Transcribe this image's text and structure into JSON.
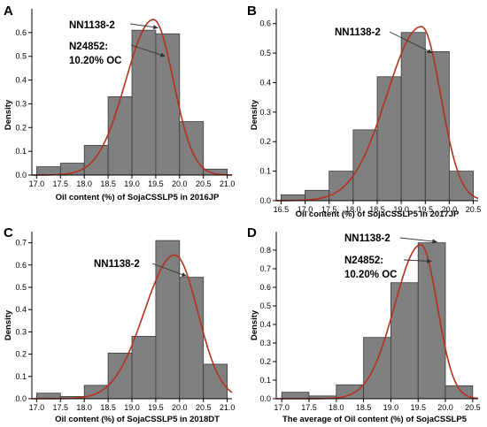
{
  "chart_data": [
    {
      "type": "bar",
      "panel": "A",
      "xlabel": "Oil content (%) of SojaCSSLP5 in 2016JP",
      "ylabel": "Density",
      "xlim": [
        16.9,
        21.1
      ],
      "ylim": [
        0,
        0.7
      ],
      "xticks": [
        17.0,
        17.5,
        18.0,
        18.5,
        19.0,
        19.5,
        20.0,
        20.5,
        21.0
      ],
      "yticks": [
        0.0,
        0.1,
        0.2,
        0.3,
        0.4,
        0.5,
        0.6
      ],
      "bins": [
        [
          17.0,
          17.5
        ],
        [
          17.5,
          18.0
        ],
        [
          18.0,
          18.5
        ],
        [
          18.5,
          19.0
        ],
        [
          19.0,
          19.5
        ],
        [
          19.5,
          20.0
        ],
        [
          20.0,
          20.5
        ],
        [
          20.5,
          21.0
        ]
      ],
      "values": [
        0.035,
        0.05,
        0.125,
        0.33,
        0.61,
        0.595,
        0.225,
        0.025
      ],
      "curve": {
        "mean": 19.45,
        "sd_left": 0.58,
        "sd_right": 0.42,
        "peak": 0.655
      },
      "annotations": [
        {
          "text": "NN1138-2",
          "target_x": 19.55,
          "target_y": 0.62
        },
        {
          "text": "N24852:",
          "line2": "10.20% OC",
          "target_x": 19.7,
          "target_y": 0.5
        }
      ]
    },
    {
      "type": "bar",
      "panel": "B",
      "xlabel": "Oil content (%) of SojaCSSLP5 in 2017JP",
      "ylabel": "Density",
      "xlim": [
        16.4,
        20.6
      ],
      "ylim": [
        0,
        0.65
      ],
      "xticks": [
        16.5,
        17.0,
        17.5,
        18.0,
        18.5,
        19.0,
        19.5,
        20.0,
        20.5
      ],
      "yticks": [
        0.0,
        0.1,
        0.2,
        0.3,
        0.4,
        0.5,
        0.6
      ],
      "bins": [
        [
          16.5,
          17.0
        ],
        [
          17.0,
          17.5
        ],
        [
          17.5,
          18.0
        ],
        [
          18.0,
          18.5
        ],
        [
          18.5,
          19.0
        ],
        [
          19.0,
          19.5
        ],
        [
          19.5,
          20.0
        ],
        [
          20.0,
          20.5
        ]
      ],
      "values": [
        0.02,
        0.035,
        0.1,
        0.24,
        0.42,
        0.57,
        0.505,
        0.1
      ],
      "curve": {
        "mean": 19.42,
        "sd_left": 0.72,
        "sd_right": 0.4,
        "peak": 0.59
      },
      "annotations": [
        {
          "text": "NN1138-2",
          "target_x": 19.65,
          "target_y": 0.5
        }
      ]
    },
    {
      "type": "bar",
      "panel": "C",
      "xlabel": "Oil content (%) of SojaCSSLP5 in 2018DT",
      "ylabel": "Density",
      "xlim": [
        16.9,
        21.1
      ],
      "ylim": [
        0,
        0.75
      ],
      "xticks": [
        17.0,
        17.5,
        18.0,
        18.5,
        19.0,
        19.5,
        20.0,
        20.5,
        21.0
      ],
      "yticks": [
        0.0,
        0.1,
        0.2,
        0.3,
        0.4,
        0.5,
        0.6,
        0.7
      ],
      "bins": [
        [
          17.0,
          17.5
        ],
        [
          17.5,
          18.0
        ],
        [
          18.0,
          18.5
        ],
        [
          18.5,
          19.0
        ],
        [
          19.0,
          19.5
        ],
        [
          19.5,
          20.0
        ],
        [
          20.0,
          20.5
        ],
        [
          20.5,
          21.0
        ]
      ],
      "values": [
        0.025,
        0.01,
        0.06,
        0.205,
        0.28,
        0.71,
        0.545,
        0.155
      ],
      "curve": {
        "mean": 19.9,
        "sd_left": 0.64,
        "sd_right": 0.48,
        "peak": 0.645
      },
      "annotations": [
        {
          "text": "NN1138-2",
          "target_x": 20.15,
          "target_y": 0.55
        }
      ]
    },
    {
      "type": "bar",
      "panel": "D",
      "xlabel": "The average of Oil content (%) of SojaCSSLP5",
      "ylabel": "Density",
      "xlim": [
        16.9,
        20.6
      ],
      "ylim": [
        0,
        0.9
      ],
      "xticks": [
        17.0,
        17.5,
        18.0,
        18.5,
        19.0,
        19.5,
        20.0,
        20.5
      ],
      "yticks": [
        0.0,
        0.1,
        0.2,
        0.3,
        0.4,
        0.5,
        0.6,
        0.7,
        0.8
      ],
      "bins": [
        [
          17.0,
          17.5
        ],
        [
          17.5,
          18.0
        ],
        [
          18.0,
          18.5
        ],
        [
          18.5,
          19.0
        ],
        [
          19.0,
          19.5
        ],
        [
          19.5,
          20.0
        ],
        [
          20.0,
          20.5
        ]
      ],
      "values": [
        0.035,
        0.015,
        0.075,
        0.33,
        0.625,
        0.84,
        0.07
      ],
      "curve": {
        "mean": 19.55,
        "sd_left": 0.48,
        "sd_right": 0.3,
        "peak": 0.83
      },
      "annotations": [
        {
          "text": "NN1138-2",
          "target_x": 19.85,
          "target_y": 0.845
        },
        {
          "text": "N24852:",
          "line2": "10.20% OC",
          "target_x": 19.75,
          "target_y": 0.74
        }
      ]
    }
  ],
  "colors": {
    "bar_fill": "#808080",
    "bar_edge": "#3a3a3a",
    "curve": "#b5311f"
  }
}
